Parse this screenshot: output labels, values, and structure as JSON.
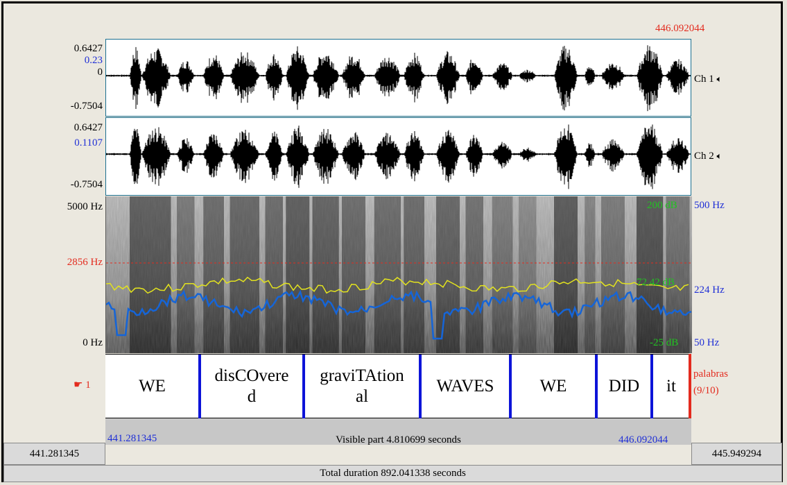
{
  "header": {
    "end_time_red": "446.092044"
  },
  "channel1": {
    "max": "0.6427",
    "cursor_value": "0.23",
    "zero": "0",
    "min": "-0.7504",
    "label": "Ch 1",
    "speaker_icon": "speaker-icon"
  },
  "channel2": {
    "max": "0.6427",
    "cursor_value": "0.1107",
    "min": "-0.7504",
    "label": "Ch 2",
    "speaker_icon": "speaker-icon"
  },
  "spectrogram": {
    "freq_max": "5000 Hz",
    "freq_cursor": "2856 Hz",
    "freq_min": "0 Hz",
    "intensity_max": "200 dB",
    "intensity_cursor": "72.42 dB",
    "intensity_min": "-25 dB",
    "pitch_max": "500 Hz",
    "pitch_cursor": "224 Hz",
    "pitch_min": "50 Hz"
  },
  "tier": {
    "number_label": "1",
    "name": "palabras",
    "count": "(9/10)",
    "words": [
      {
        "line1": "WE",
        "line2": ""
      },
      {
        "line1": "disCOvere",
        "line2": "d"
      },
      {
        "line1": "graviTAtion",
        "line2": "al"
      },
      {
        "line1": "WAVES",
        "line2": ""
      },
      {
        "line1": "WE",
        "line2": ""
      },
      {
        "line1": "DID",
        "line2": ""
      },
      {
        "line1": "it",
        "line2": ""
      }
    ]
  },
  "footer": {
    "window_start": "441.281345",
    "window_end": "446.092044",
    "visible_part": "Visible part 4.810699 seconds",
    "left_time": "441.281345",
    "right_time": "445.949294",
    "total_duration": "Total duration 892.041338 seconds"
  },
  "colors": {
    "boundary": "#0d14d8",
    "cursor": "#e32b1e",
    "pitch": "#1565d8",
    "intensity": "#e3e31e"
  }
}
